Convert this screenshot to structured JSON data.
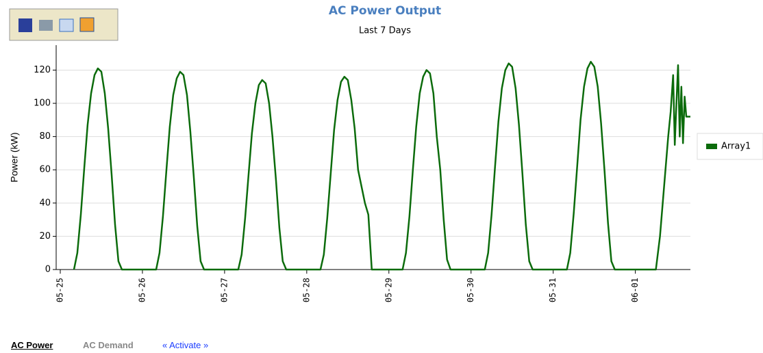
{
  "chart_data": {
    "type": "line",
    "title": "AC Power Output",
    "subtitle": "Last 7 Days",
    "y_label": "Power (kW)",
    "x": [
      0.167,
      0.208,
      0.25,
      0.292,
      0.333,
      0.375,
      0.417,
      0.458,
      0.5,
      0.542,
      0.583,
      0.625,
      0.667,
      0.708,
      0.75,
      1.167,
      1.208,
      1.25,
      1.292,
      1.333,
      1.375,
      1.417,
      1.458,
      1.5,
      1.542,
      1.583,
      1.625,
      1.667,
      1.708,
      1.75,
      2.167,
      2.208,
      2.25,
      2.292,
      2.333,
      2.375,
      2.417,
      2.458,
      2.5,
      2.542,
      2.583,
      2.625,
      2.667,
      2.708,
      2.75,
      3.167,
      3.208,
      3.25,
      3.292,
      3.333,
      3.375,
      3.417,
      3.458,
      3.5,
      3.542,
      3.583,
      3.625,
      3.667,
      3.708,
      3.75,
      3.792,
      4.167,
      4.208,
      4.25,
      4.292,
      4.333,
      4.375,
      4.417,
      4.458,
      4.5,
      4.542,
      4.583,
      4.625,
      4.667,
      4.708,
      4.75,
      5.167,
      5.208,
      5.25,
      5.292,
      5.333,
      5.375,
      5.417,
      5.458,
      5.5,
      5.542,
      5.583,
      5.625,
      5.667,
      5.708,
      5.75,
      6.167,
      6.208,
      6.25,
      6.292,
      6.333,
      6.375,
      6.417,
      6.458,
      6.5,
      6.542,
      6.583,
      6.625,
      6.667,
      6.708,
      6.75,
      7.25,
      7.3,
      7.35,
      7.4,
      7.43,
      7.46,
      7.48,
      7.5,
      7.52,
      7.54,
      7.56,
      7.58,
      7.6,
      7.62,
      7.67
    ],
    "series": [
      {
        "name": "Array1",
        "color": "#0b6b0b",
        "values": [
          0,
          10,
          33,
          61,
          87,
          106,
          117,
          121,
          119,
          106,
          85,
          57,
          27,
          5,
          0,
          0,
          10,
          32,
          60,
          86,
          105,
          115,
          119,
          117,
          105,
          83,
          56,
          26,
          5,
          0,
          0,
          9,
          31,
          57,
          82,
          100,
          111,
          114,
          112,
          100,
          80,
          54,
          25,
          5,
          0,
          0,
          9,
          31,
          58,
          84,
          102,
          113,
          116,
          114,
          102,
          85,
          60,
          50,
          40,
          33,
          0,
          0,
          10,
          32,
          60,
          86,
          106,
          116,
          120,
          118,
          106,
          80,
          60,
          30,
          6,
          0,
          0,
          10,
          33,
          62,
          89,
          109,
          120,
          124,
          122,
          109,
          87,
          58,
          27,
          5,
          0,
          0,
          10,
          34,
          62,
          90,
          110,
          121,
          125,
          122,
          110,
          88,
          59,
          28,
          5,
          0,
          0,
          20,
          50,
          80,
          95,
          117,
          75,
          100,
          123,
          80,
          110,
          76,
          104,
          92,
          92
        ]
      }
    ],
    "xlim": [
      -0.05,
      7.67
    ],
    "xticks": [
      {
        "value": 0,
        "label": "05-25"
      },
      {
        "value": 1,
        "label": "05-26"
      },
      {
        "value": 2,
        "label": "05-27"
      },
      {
        "value": 3,
        "label": "05-28"
      },
      {
        "value": 4,
        "label": "05-29"
      },
      {
        "value": 5,
        "label": "05-30"
      },
      {
        "value": 6,
        "label": "05-31"
      },
      {
        "value": 7,
        "label": "06-01"
      }
    ],
    "ylim": [
      0,
      135
    ],
    "yticks": [
      0,
      20,
      40,
      60,
      80,
      100,
      120
    ],
    "grid": true,
    "legend": "right"
  },
  "tabs": [
    "AC Power",
    "AC Demand",
    "« Activate »"
  ]
}
